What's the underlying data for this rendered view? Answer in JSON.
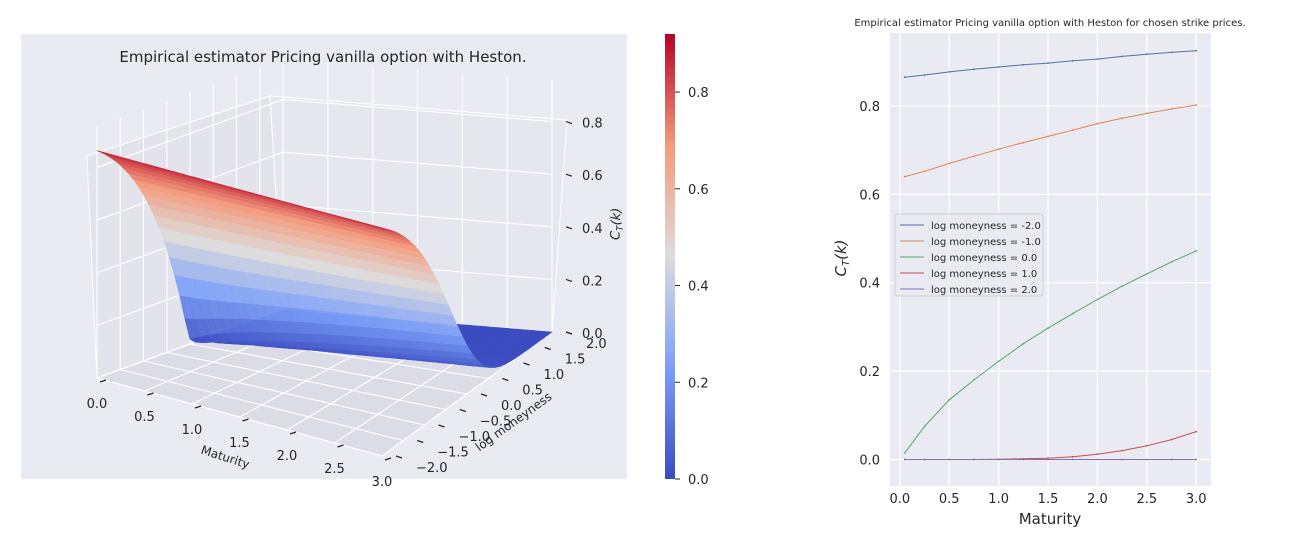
{
  "chart_data": [
    {
      "type": "surface",
      "title": "Empirical estimator Pricing vanilla option with Heston.",
      "xlabel": "Maturity",
      "ylabel": "log moneyness",
      "zlabel": "C_T(k)",
      "xlim": [
        0,
        3
      ],
      "ylim": [
        -2,
        2
      ],
      "zlim": [
        0,
        0.92
      ],
      "x_ticks": [
        "0.0",
        "0.5",
        "1.0",
        "1.5",
        "2.0",
        "2.5",
        "3.0"
      ],
      "y_ticks": [
        "−2.0",
        "−1.5",
        "−1.0",
        "−0.5",
        "0.0",
        "0.5",
        "1.0",
        "1.5",
        "2.0"
      ],
      "z_ticks": [
        "0.0",
        "0.2",
        "0.4",
        "0.6",
        "0.8"
      ],
      "colormap": "coolwarm",
      "colorbar": {
        "min": 0,
        "max": 0.92,
        "ticks": [
          "0.0",
          "0.2",
          "0.4",
          "0.6",
          "0.8"
        ]
      },
      "surface_corners": {
        "maturity_0_moneyness_minus2": 0.865,
        "maturity_3_moneyness_minus2": 0.925,
        "maturity_0_moneyness_2": 0.0,
        "maturity_3_moneyness_2": 0.0
      }
    },
    {
      "type": "line",
      "title": "Empirical estimator Pricing vanilla option with Heston for chosen strike prices.",
      "xlabel": "Maturity",
      "ylabel": "C_T(k)",
      "xlim": [
        -0.1,
        3.15
      ],
      "ylim": [
        -0.06,
        0.965
      ],
      "x_ticks": [
        "0.0",
        "0.5",
        "1.0",
        "1.5",
        "2.0",
        "2.5",
        "3.0"
      ],
      "y_ticks": [
        "0.0",
        "0.2",
        "0.4",
        "0.6",
        "0.8"
      ],
      "legend_position": "center-left",
      "x": [
        0.05,
        0.25,
        0.5,
        0.75,
        1.0,
        1.25,
        1.5,
        1.75,
        2.0,
        2.25,
        2.5,
        2.75,
        3.0
      ],
      "series": [
        {
          "name": "log moneyness = -2.0",
          "color": "#4c72b0",
          "values": [
            0.865,
            0.87,
            0.877,
            0.883,
            0.888,
            0.893,
            0.897,
            0.902,
            0.906,
            0.912,
            0.917,
            0.921,
            0.925
          ]
        },
        {
          "name": "log moneyness = -1.0",
          "color": "#dd8452",
          "values": [
            0.64,
            0.652,
            0.67,
            0.686,
            0.702,
            0.717,
            0.731,
            0.745,
            0.76,
            0.772,
            0.783,
            0.793,
            0.802
          ]
        },
        {
          "name": "log moneyness = 0.0",
          "color": "#55a868",
          "values": [
            0.015,
            0.075,
            0.135,
            0.18,
            0.222,
            0.262,
            0.297,
            0.33,
            0.362,
            0.392,
            0.42,
            0.447,
            0.472
          ]
        },
        {
          "name": "log moneyness = 1.0",
          "color": "#c44e52",
          "values": [
            0.0,
            0.0,
            0.0,
            0.0,
            0.0005,
            0.0015,
            0.003,
            0.006,
            0.012,
            0.02,
            0.031,
            0.045,
            0.063
          ]
        },
        {
          "name": "log moneyness = 2.0",
          "color": "#8172b3",
          "values": [
            0.0,
            0.0,
            0.0,
            0.0,
            0.0,
            0.0,
            0.0,
            0.0,
            0.0,
            0.0,
            0.0,
            0.0,
            0.0
          ]
        }
      ]
    }
  ]
}
